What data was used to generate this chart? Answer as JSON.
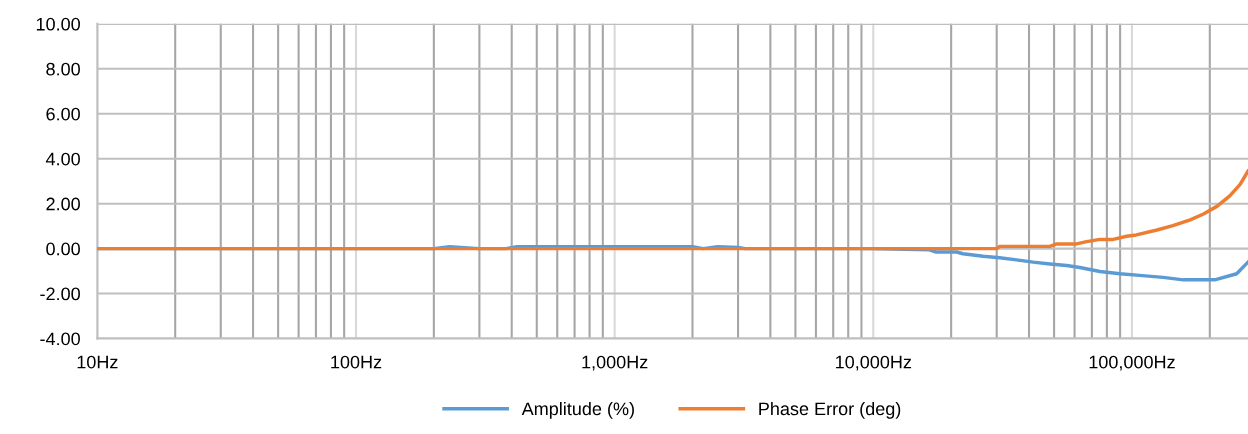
{
  "chart_data": {
    "type": "line",
    "log": "x",
    "grid": true,
    "legend": "bottom",
    "marker": "none",
    "line_style": "solid",
    "xlim": [
      10,
      281000
    ],
    "ylim": [
      -4,
      10
    ],
    "xticks": [
      {
        "value": 10,
        "label": "10Hz"
      },
      {
        "value": 20,
        "label": null
      },
      {
        "value": 30,
        "label": null
      },
      {
        "value": 40,
        "label": null
      },
      {
        "value": 50,
        "label": null
      },
      {
        "value": 60,
        "label": null
      },
      {
        "value": 70,
        "label": null
      },
      {
        "value": 80,
        "label": null
      },
      {
        "value": 90,
        "label": null
      },
      {
        "value": 100,
        "label": "100Hz"
      },
      {
        "value": 200,
        "label": null
      },
      {
        "value": 300,
        "label": null
      },
      {
        "value": 400,
        "label": null
      },
      {
        "value": 500,
        "label": null
      },
      {
        "value": 600,
        "label": null
      },
      {
        "value": 700,
        "label": null
      },
      {
        "value": 800,
        "label": null
      },
      {
        "value": 900,
        "label": null
      },
      {
        "value": 1000,
        "label": "1,000Hz"
      },
      {
        "value": 2000,
        "label": null
      },
      {
        "value": 3000,
        "label": null
      },
      {
        "value": 4000,
        "label": null
      },
      {
        "value": 5000,
        "label": null
      },
      {
        "value": 6000,
        "label": null
      },
      {
        "value": 7000,
        "label": null
      },
      {
        "value": 8000,
        "label": null
      },
      {
        "value": 9000,
        "label": null
      },
      {
        "value": 10000,
        "label": "10,000Hz"
      },
      {
        "value": 20000,
        "label": null
      },
      {
        "value": 30000,
        "label": null
      },
      {
        "value": 40000,
        "label": null
      },
      {
        "value": 50000,
        "label": null
      },
      {
        "value": 60000,
        "label": null
      },
      {
        "value": 70000,
        "label": null
      },
      {
        "value": 80000,
        "label": null
      },
      {
        "value": 90000,
        "label": null
      },
      {
        "value": 100000,
        "label": "100,000Hz"
      },
      {
        "value": 200000,
        "label": null
      }
    ],
    "yticks": [
      {
        "value": -4,
        "label": "-4.00"
      },
      {
        "value": -2,
        "label": "-2.00"
      },
      {
        "value": 0,
        "label": "0.00"
      },
      {
        "value": 2,
        "label": "2.00"
      },
      {
        "value": 4,
        "label": "4.00"
      },
      {
        "value": 6,
        "label": "6.00"
      },
      {
        "value": 8,
        "label": "8.00"
      },
      {
        "value": 10,
        "label": "10.00"
      }
    ],
    "series": [
      {
        "name": "Amplitude (%)",
        "color": "#5b9bd5",
        "x": [
          10,
          200,
          230,
          300,
          380,
          420,
          2000,
          2200,
          2500,
          3000,
          3200,
          9700,
          16500,
          17500,
          21000,
          22200,
          26600,
          30800,
          35800,
          41500,
          48200,
          55900,
          62900,
          75200,
          89900,
          107000,
          132000,
          158000,
          209000,
          254000,
          281000
        ],
        "values": [
          0,
          0,
          0.08,
          0,
          0,
          0.08,
          0.08,
          0,
          0.08,
          0.05,
          0,
          0,
          -0.05,
          -0.15,
          -0.15,
          -0.23,
          -0.34,
          -0.41,
          -0.5,
          -0.6,
          -0.68,
          -0.75,
          -0.84,
          -1.02,
          -1.12,
          -1.19,
          -1.28,
          -1.39,
          -1.39,
          -1.12,
          -0.6
        ]
      },
      {
        "name": "Phase Error (deg)",
        "color": "#ed7d31",
        "x": [
          10,
          30000,
          30800,
          48200,
          51100,
          61100,
          66800,
          75200,
          84700,
          95400,
          104000,
          125000,
          144000,
          168000,
          189000,
          213000,
          239000,
          262000,
          281000
        ],
        "values": [
          0,
          0,
          0.1,
          0.1,
          0.21,
          0.21,
          0.31,
          0.41,
          0.41,
          0.55,
          0.61,
          0.83,
          1.02,
          1.28,
          1.54,
          1.88,
          2.35,
          2.86,
          3.45
        ]
      }
    ]
  }
}
